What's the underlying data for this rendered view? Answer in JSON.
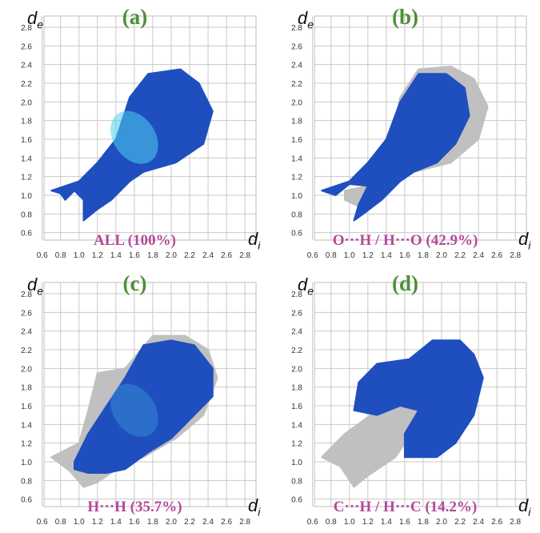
{
  "chart_data": [
    {
      "type": "scatter",
      "panel_label": "(a)",
      "caption": "ALL (100%)",
      "xlabel": "d",
      "xlabel_sub": "i",
      "ylabel": "d",
      "ylabel_sub": "e",
      "xlim": [
        0.6,
        2.9
      ],
      "ylim": [
        0.6,
        2.9
      ],
      "xticks": [
        "0.6",
        "0.8",
        "1.0",
        "1.2",
        "1.4",
        "1.6",
        "1.8",
        "2.0",
        "2.2",
        "2.4",
        "2.6",
        "2.8"
      ],
      "yticks": [
        "0.6",
        "0.8",
        "1.0",
        "1.2",
        "1.4",
        "1.6",
        "1.8",
        "2.0",
        "2.2",
        "2.4",
        "2.6",
        "2.8"
      ],
      "grid": true,
      "highlight_color": "#1f4fbf",
      "background_color": "#c0c0c0",
      "hot_color": "#4fd0f0",
      "highlight_region": [
        [
          0.7,
          1.05
        ],
        [
          1.0,
          1.15
        ],
        [
          1.2,
          1.35
        ],
        [
          1.4,
          1.6
        ],
        [
          1.55,
          2.05
        ],
        [
          1.75,
          2.3
        ],
        [
          2.1,
          2.35
        ],
        [
          2.3,
          2.2
        ],
        [
          2.45,
          1.9
        ],
        [
          2.35,
          1.55
        ],
        [
          2.05,
          1.35
        ],
        [
          1.7,
          1.25
        ],
        [
          1.55,
          1.15
        ],
        [
          1.35,
          0.95
        ],
        [
          1.2,
          0.85
        ],
        [
          1.05,
          0.73
        ],
        [
          1.05,
          0.95
        ],
        [
          0.95,
          1.05
        ],
        [
          0.85,
          0.95
        ],
        [
          0.8,
          1.02
        ]
      ],
      "background_region": []
    },
    {
      "type": "scatter",
      "panel_label": "(b)",
      "caption": "O···H / H···O (42.9%)",
      "xlabel": "d",
      "xlabel_sub": "i",
      "ylabel": "d",
      "ylabel_sub": "e",
      "xlim": [
        0.6,
        2.9
      ],
      "ylim": [
        0.6,
        2.9
      ],
      "xticks": [
        "0.6",
        "0.8",
        "1.0",
        "1.2",
        "1.4",
        "1.6",
        "1.8",
        "2.0",
        "2.2",
        "2.4",
        "2.6",
        "2.8"
      ],
      "yticks": [
        "0.6",
        "0.8",
        "1.0",
        "1.2",
        "1.4",
        "1.6",
        "1.8",
        "2.0",
        "2.2",
        "2.4",
        "2.6",
        "2.8"
      ],
      "grid": true,
      "highlight_color": "#1f4fbf",
      "background_color": "#c0c0c0",
      "hot_color": "#4fd0f0",
      "highlight_region": [
        [
          0.7,
          1.05
        ],
        [
          1.0,
          1.15
        ],
        [
          1.2,
          1.35
        ],
        [
          1.4,
          1.6
        ],
        [
          1.55,
          2.0
        ],
        [
          1.75,
          2.3
        ],
        [
          2.05,
          2.3
        ],
        [
          2.25,
          2.15
        ],
        [
          2.3,
          1.85
        ],
        [
          2.15,
          1.55
        ],
        [
          1.95,
          1.35
        ],
        [
          1.7,
          1.25
        ],
        [
          1.55,
          1.15
        ],
        [
          1.35,
          0.95
        ],
        [
          1.15,
          0.8
        ],
        [
          1.05,
          0.73
        ],
        [
          1.1,
          0.9
        ],
        [
          1.2,
          1.1
        ],
        [
          1.0,
          1.12
        ],
        [
          0.85,
          1.0
        ]
      ],
      "background_region": [
        [
          1.55,
          2.05
        ],
        [
          1.75,
          2.35
        ],
        [
          2.1,
          2.38
        ],
        [
          2.35,
          2.25
        ],
        [
          2.5,
          1.95
        ],
        [
          2.4,
          1.6
        ],
        [
          2.1,
          1.35
        ],
        [
          1.7,
          1.25
        ],
        [
          1.55,
          1.15
        ],
        [
          1.3,
          0.95
        ],
        [
          1.1,
          0.88
        ],
        [
          0.95,
          0.95
        ],
        [
          0.95,
          1.05
        ],
        [
          1.2,
          1.1
        ],
        [
          1.2,
          1.35
        ],
        [
          1.45,
          1.6
        ]
      ]
    },
    {
      "type": "scatter",
      "panel_label": "(c)",
      "caption": "H···H (35.7%)",
      "xlabel": "d",
      "xlabel_sub": "i",
      "ylabel": "d",
      "ylabel_sub": "e",
      "xlim": [
        0.6,
        2.9
      ],
      "ylim": [
        0.6,
        2.9
      ],
      "xticks": [
        "0.6",
        "0.8",
        "1.0",
        "1.2",
        "1.4",
        "1.6",
        "1.8",
        "2.0",
        "2.2",
        "2.4",
        "2.6",
        "2.8"
      ],
      "yticks": [
        "0.6",
        "0.8",
        "1.0",
        "1.2",
        "1.4",
        "1.6",
        "1.8",
        "2.0",
        "2.2",
        "2.4",
        "2.6",
        "2.8"
      ],
      "grid": true,
      "highlight_color": "#1f4fbf",
      "background_color": "#c0c0c0",
      "hot_color": "#4fd0f0",
      "highlight_region": [
        [
          0.95,
          1.0
        ],
        [
          1.1,
          1.3
        ],
        [
          1.3,
          1.6
        ],
        [
          1.5,
          1.9
        ],
        [
          1.7,
          2.25
        ],
        [
          2.0,
          2.3
        ],
        [
          2.25,
          2.25
        ],
        [
          2.45,
          2.0
        ],
        [
          2.45,
          1.7
        ],
        [
          2.2,
          1.45
        ],
        [
          2.0,
          1.25
        ],
        [
          1.75,
          1.1
        ],
        [
          1.5,
          0.92
        ],
        [
          1.3,
          0.88
        ],
        [
          1.1,
          0.88
        ],
        [
          0.95,
          0.92
        ]
      ],
      "background_region": [
        [
          0.7,
          1.05
        ],
        [
          1.0,
          1.2
        ],
        [
          1.1,
          1.55
        ],
        [
          1.2,
          1.95
        ],
        [
          1.5,
          2.0
        ],
        [
          1.8,
          2.35
        ],
        [
          2.15,
          2.35
        ],
        [
          2.4,
          2.2
        ],
        [
          2.5,
          1.9
        ],
        [
          2.35,
          1.5
        ],
        [
          2.05,
          1.25
        ],
        [
          1.7,
          1.05
        ],
        [
          1.45,
          0.95
        ],
        [
          1.2,
          0.78
        ],
        [
          1.05,
          0.73
        ],
        [
          0.9,
          0.9
        ]
      ]
    },
    {
      "type": "scatter",
      "panel_label": "(d)",
      "caption": "C···H / H···C (14.2%)",
      "xlabel": "d",
      "xlabel_sub": "i",
      "ylabel": "d",
      "ylabel_sub": "e",
      "xlim": [
        0.6,
        2.9
      ],
      "ylim": [
        0.6,
        2.9
      ],
      "xticks": [
        "0.6",
        "0.8",
        "1.0",
        "1.2",
        "1.4",
        "1.6",
        "1.8",
        "2.0",
        "2.2",
        "2.4",
        "2.6",
        "2.8"
      ],
      "yticks": [
        "0.6",
        "0.8",
        "1.0",
        "1.2",
        "1.4",
        "1.6",
        "1.8",
        "2.0",
        "2.2",
        "2.4",
        "2.6",
        "2.8"
      ],
      "grid": true,
      "highlight_color": "#1f4fbf",
      "background_color": "#c0c0c0",
      "hot_color": "#4fd0f0",
      "highlight_region": [
        [
          1.05,
          1.55
        ],
        [
          1.1,
          1.85
        ],
        [
          1.3,
          2.05
        ],
        [
          1.65,
          2.1
        ],
        [
          1.9,
          2.3
        ],
        [
          2.2,
          2.3
        ],
        [
          2.35,
          2.15
        ],
        [
          2.45,
          1.9
        ],
        [
          2.35,
          1.5
        ],
        [
          2.15,
          1.2
        ],
        [
          1.95,
          1.05
        ],
        [
          1.6,
          1.05
        ],
        [
          1.6,
          1.3
        ],
        [
          1.75,
          1.55
        ],
        [
          1.55,
          1.6
        ],
        [
          1.3,
          1.5
        ]
      ],
      "background_region": [
        [
          0.7,
          1.05
        ],
        [
          0.95,
          1.3
        ],
        [
          1.3,
          1.55
        ],
        [
          1.75,
          1.65
        ],
        [
          1.7,
          1.35
        ],
        [
          1.5,
          1.05
        ],
        [
          1.2,
          0.85
        ],
        [
          1.05,
          0.73
        ],
        [
          0.9,
          0.95
        ]
      ]
    }
  ]
}
